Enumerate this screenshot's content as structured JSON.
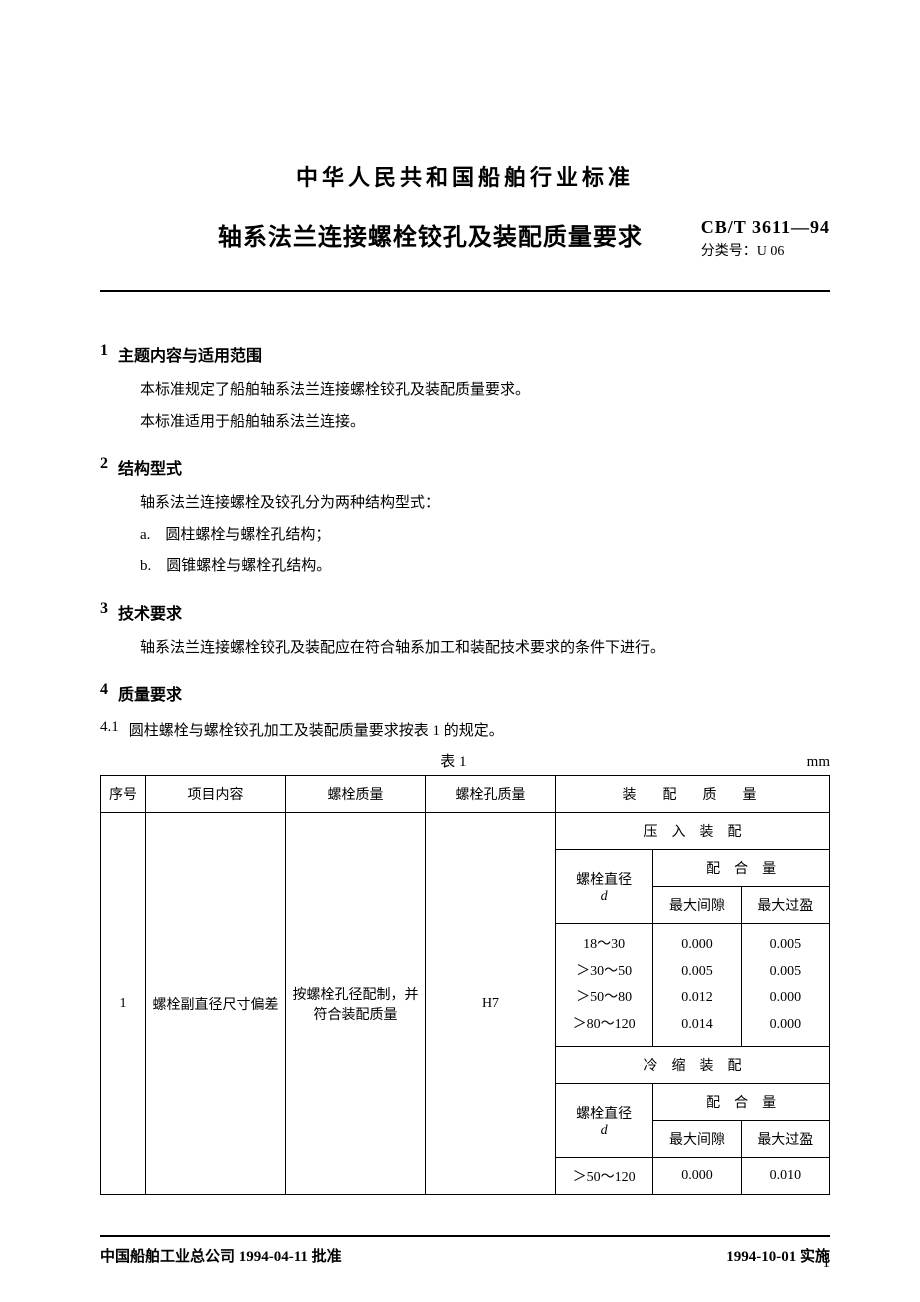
{
  "super_title": "中华人民共和国船舶行业标准",
  "main_title": "轴系法兰连接螺栓铰孔及装配质量要求",
  "standard_code": "CB/T 3611—94",
  "classification_label": "分类号：",
  "classification_code": "U 06",
  "sections": {
    "s1": {
      "num": "1",
      "title": "主题内容与适用范围"
    },
    "s2": {
      "num": "2",
      "title": "结构型式"
    },
    "s3": {
      "num": "3",
      "title": "技术要求"
    },
    "s4": {
      "num": "4",
      "title": "质量要求"
    },
    "s4_1": {
      "num": "4.1",
      "title": "圆柱螺栓与螺栓铰孔加工及装配质量要求按表 1 的规定。"
    }
  },
  "paragraphs": {
    "p1a": "本标准规定了船舶轴系法兰连接螺栓铰孔及装配质量要求。",
    "p1b": "本标准适用于船舶轴系法兰连接。",
    "p2a": "轴系法兰连接螺栓及铰孔分为两种结构型式：",
    "p2b": "a.　圆柱螺栓与螺栓孔结构；",
    "p2c": "b.　圆锥螺栓与螺栓孔结构。",
    "p3a": "轴系法兰连接螺栓铰孔及装配应在符合轴系加工和装配技术要求的条件下进行。"
  },
  "table": {
    "caption": "表 1",
    "unit": "mm",
    "headers": {
      "seq": "序号",
      "item": "项目内容",
      "bolt_quality": "螺栓质量",
      "hole_quality": "螺栓孔质量",
      "assembly_quality": "装　配　质　量"
    },
    "row1": {
      "seq": "1",
      "item": "螺栓副直径尺寸偏差",
      "bolt_quality": "按螺栓孔径配制，并符合装配质量",
      "hole_quality": "H7",
      "press_fit_header": "压　入　装　配",
      "shrink_fit_header": "冷　缩　装　配",
      "bolt_diameter_label": "螺栓直径",
      "bolt_diameter_symbol": "d",
      "fit_qty_label": "配　合　量",
      "max_gap_label": "最大间隙",
      "max_interference_label": "最大过盈",
      "press_ranges": [
        "18～30",
        "＞30～50",
        "＞50～80",
        "＞80～120"
      ],
      "press_max_gap": [
        "0.000",
        "0.005",
        "0.012",
        "0.014"
      ],
      "press_max_int": [
        "0.005",
        "0.005",
        "0.000",
        "0.000"
      ],
      "shrink_range": "＞50～120",
      "shrink_max_gap": "0.000",
      "shrink_max_int": "0.010"
    }
  },
  "footer": {
    "approved": "中国船舶工业总公司 1994-04-11 批准",
    "effective": "1994-10-01 实施"
  },
  "page_number": "1",
  "colors": {
    "text": "#000000",
    "background": "#ffffff",
    "border": "#000000"
  }
}
